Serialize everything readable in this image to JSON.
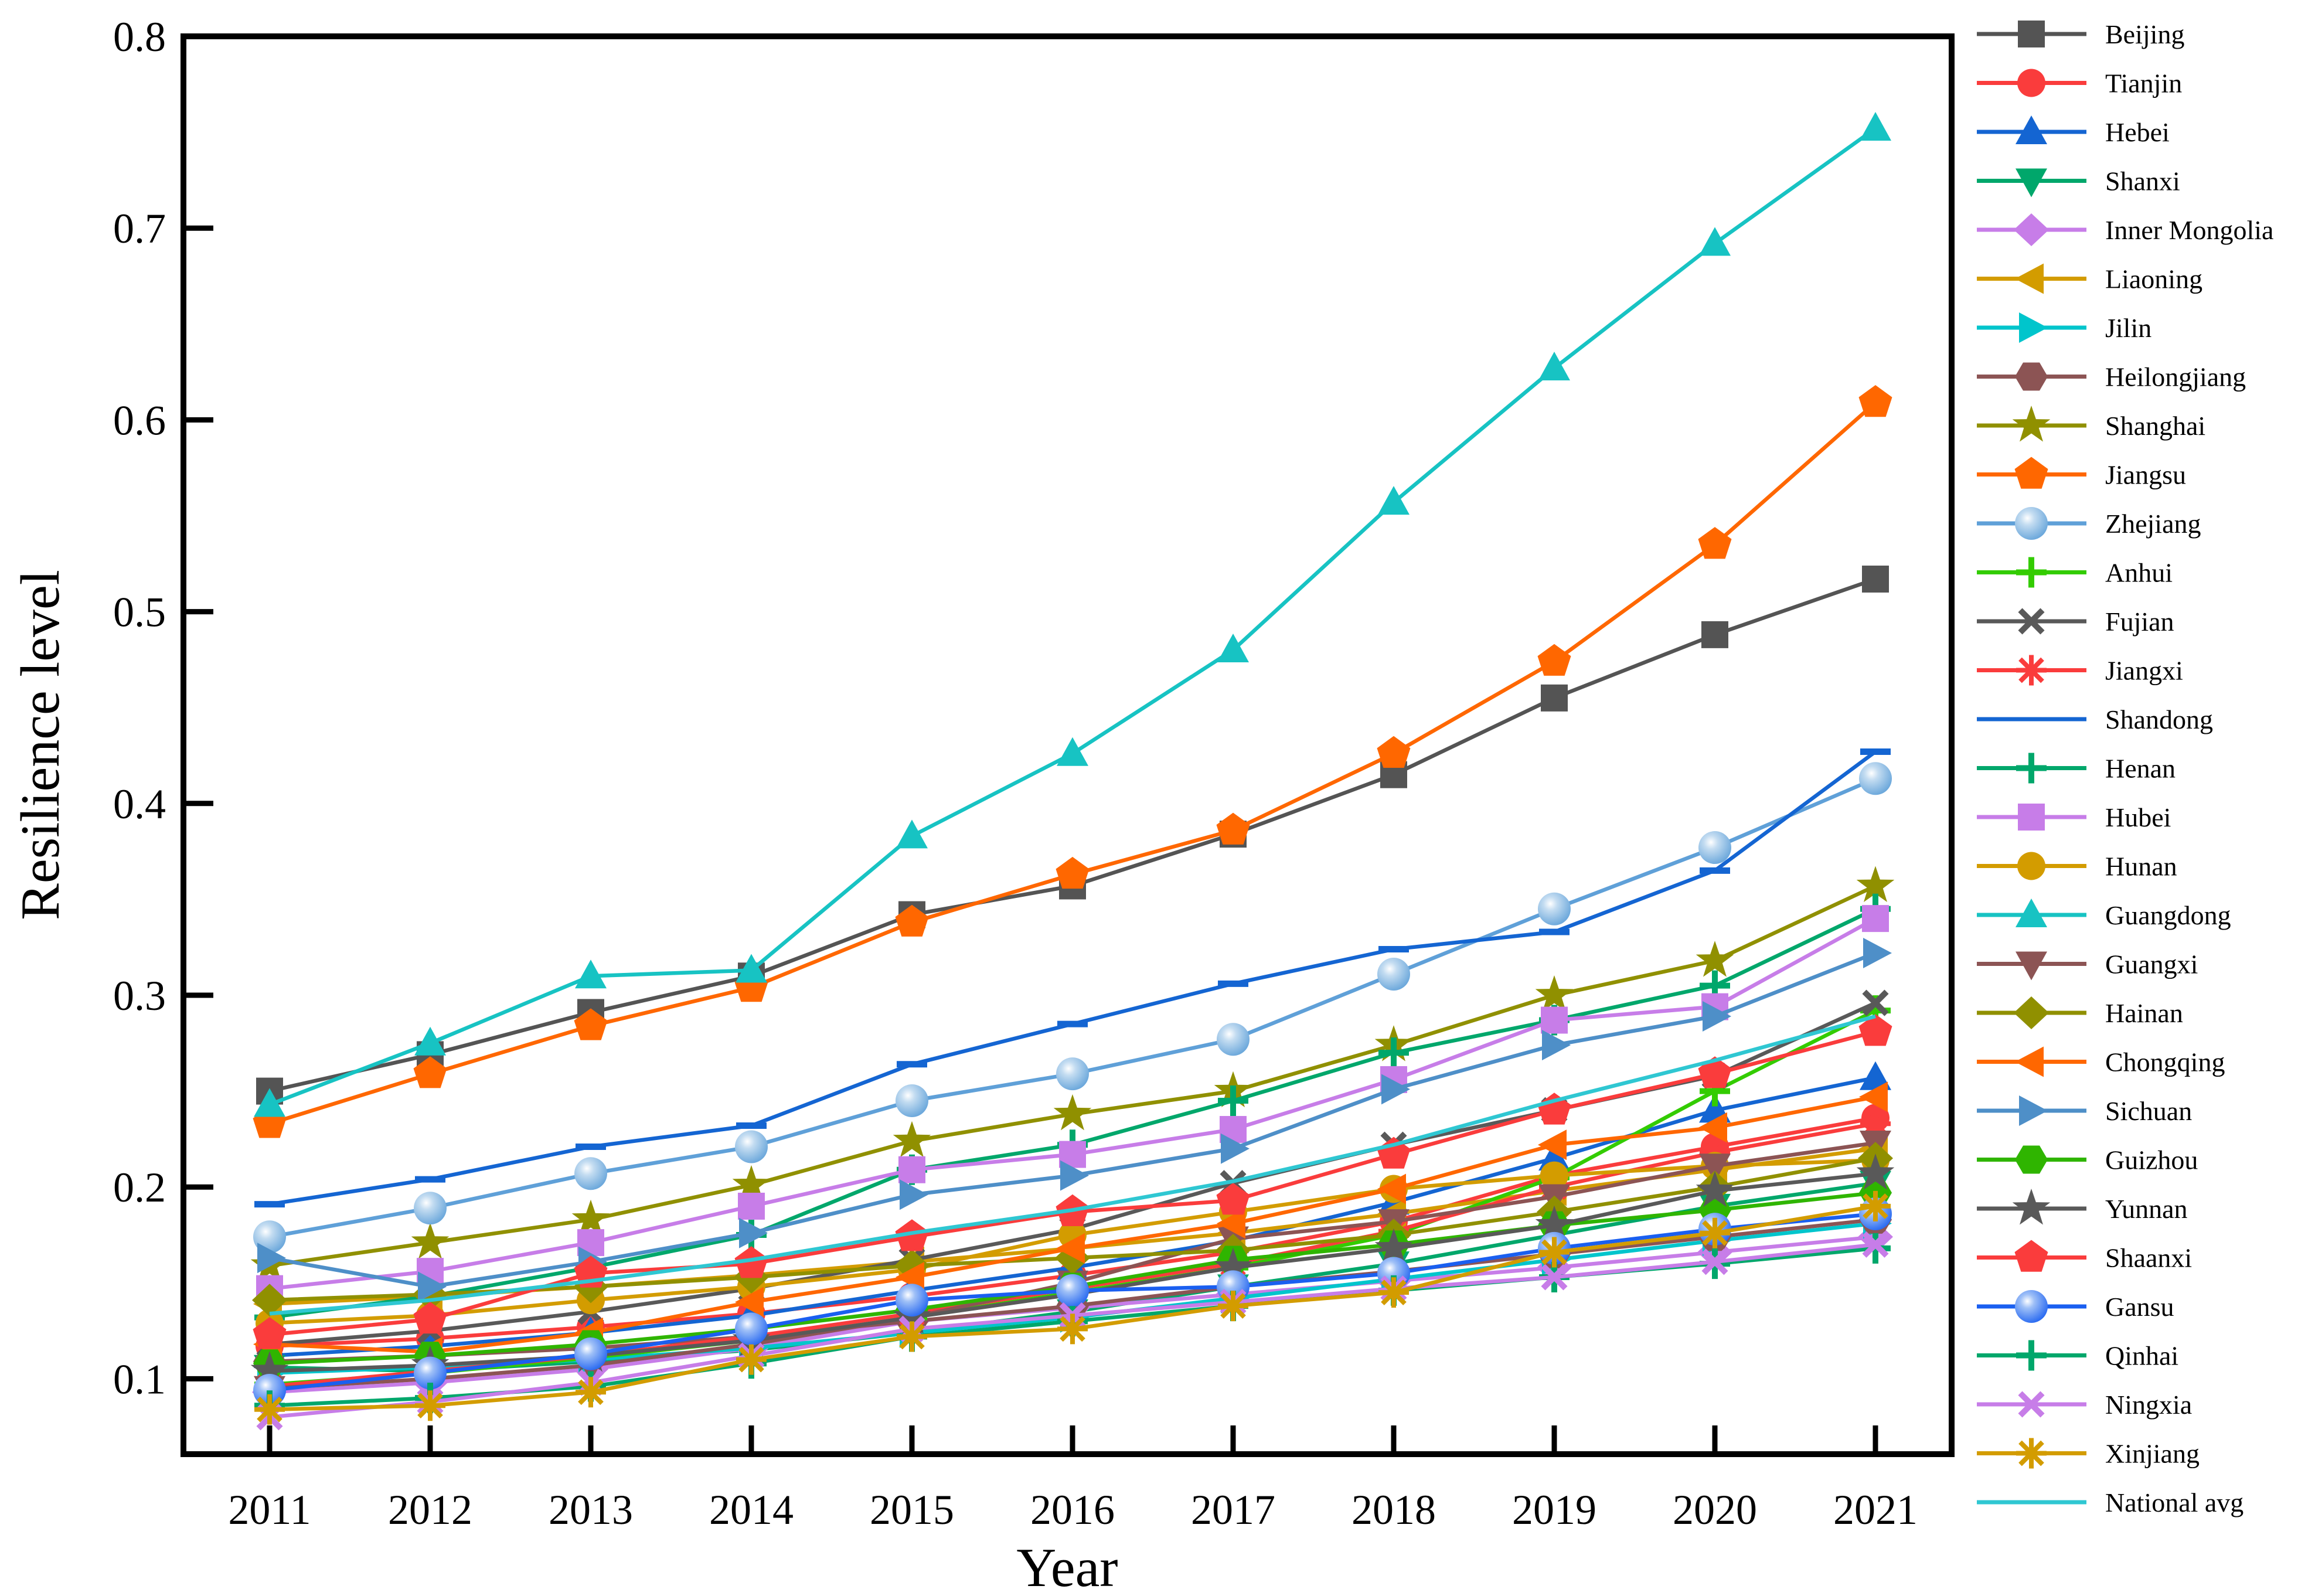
{
  "figure": {
    "background": "#FFFFFF"
  },
  "chart_data": {
    "type": "line",
    "title": "",
    "xlabel": "Year",
    "ylabel": "Resilience level",
    "x": [
      2011,
      2012,
      2013,
      2014,
      2015,
      2016,
      2017,
      2018,
      2019,
      2020,
      2021
    ],
    "x_tick_labels": [
      "2011",
      "2012",
      "2013",
      "2014",
      "2015",
      "2016",
      "2017",
      "2018",
      "2019",
      "2020",
      "2021"
    ],
    "y_ticks": [
      0.1,
      0.2,
      0.3,
      0.4,
      0.5,
      0.6,
      0.7,
      0.8
    ],
    "y_tick_labels": [
      "0.1",
      "0.2",
      "0.3",
      "0.4",
      "0.5",
      "0.6",
      "0.7",
      "0.8"
    ],
    "ylim": [
      0.06,
      0.8
    ],
    "grid": false,
    "legend_position": "right",
    "series": [
      {
        "name": "Beijing",
        "color": "#545454",
        "marker": "square",
        "values": [
          0.25,
          0.269,
          0.291,
          0.31,
          0.342,
          0.357,
          0.384,
          0.415,
          0.455,
          0.488,
          0.517
        ]
      },
      {
        "name": "Tianjin",
        "color": "#FA3C3C",
        "marker": "circle",
        "values": [
          0.117,
          0.121,
          0.127,
          0.134,
          0.143,
          0.154,
          0.166,
          0.182,
          0.206,
          0.221,
          0.236
        ]
      },
      {
        "name": "Hebei",
        "color": "#1465D2",
        "marker": "triangle-up",
        "values": [
          0.112,
          0.117,
          0.124,
          0.133,
          0.146,
          0.158,
          0.172,
          0.192,
          0.215,
          0.24,
          0.257
        ]
      },
      {
        "name": "Shanxi",
        "color": "#00A76B",
        "marker": "triangle-down",
        "values": [
          0.106,
          0.104,
          0.109,
          0.115,
          0.124,
          0.135,
          0.148,
          0.16,
          0.175,
          0.19,
          0.202
        ]
      },
      {
        "name": "Inner Mongolia",
        "color": "#C77DE8",
        "marker": "diamond",
        "values": [
          0.093,
          0.098,
          0.105,
          0.116,
          0.13,
          0.137,
          0.144,
          0.151,
          0.158,
          0.166,
          0.174
        ]
      },
      {
        "name": "Liaoning",
        "color": "#D39C00",
        "marker": "triangle-left",
        "values": [
          0.139,
          0.143,
          0.148,
          0.154,
          0.161,
          0.168,
          0.176,
          0.186,
          0.198,
          0.209,
          0.22
        ]
      },
      {
        "name": "Jilin",
        "color": "#00C5CC",
        "marker": "triangle-right",
        "values": [
          0.103,
          0.106,
          0.11,
          0.116,
          0.124,
          0.132,
          0.142,
          0.152,
          0.162,
          0.172,
          0.181
        ]
      },
      {
        "name": "Heilongjiang",
        "color": "#8C5454",
        "marker": "hexagon",
        "values": [
          0.109,
          0.112,
          0.116,
          0.122,
          0.13,
          0.138,
          0.148,
          0.156,
          0.165,
          0.174,
          0.183
        ]
      },
      {
        "name": "Shanghai",
        "color": "#909000",
        "marker": "star",
        "values": [
          0.159,
          0.171,
          0.183,
          0.201,
          0.224,
          0.238,
          0.25,
          0.274,
          0.3,
          0.318,
          0.357
        ]
      },
      {
        "name": "Jiangsu",
        "color": "#FF6700",
        "marker": "pentagon",
        "values": [
          0.233,
          0.259,
          0.284,
          0.304,
          0.338,
          0.363,
          0.386,
          0.426,
          0.474,
          0.535,
          0.609
        ]
      },
      {
        "name": "Zhejiang",
        "color": "#5FA0D8",
        "marker": "sphere",
        "values": [
          0.174,
          0.189,
          0.207,
          0.221,
          0.245,
          0.259,
          0.277,
          0.311,
          0.345,
          0.377,
          0.413
        ]
      },
      {
        "name": "Anhui",
        "color": "#33CC00",
        "marker": "plus",
        "values": [
          0.097,
          0.103,
          0.111,
          0.12,
          0.132,
          0.145,
          0.158,
          0.175,
          0.205,
          0.25,
          0.292
        ]
      },
      {
        "name": "Fujian",
        "color": "#595959",
        "marker": "x",
        "values": [
          0.118,
          0.125,
          0.135,
          0.147,
          0.162,
          0.178,
          0.202,
          0.222,
          0.24,
          0.258,
          0.296
        ]
      },
      {
        "name": "Jiangxi",
        "color": "#FA3C3C",
        "marker": "asterisk",
        "values": [
          0.096,
          0.104,
          0.112,
          0.122,
          0.134,
          0.147,
          0.16,
          0.177,
          0.2,
          0.218,
          0.233
        ]
      },
      {
        "name": "Shandong",
        "color": "#1465D2",
        "marker": "dash",
        "values": [
          0.191,
          0.204,
          0.221,
          0.232,
          0.264,
          0.285,
          0.306,
          0.324,
          0.333,
          0.365,
          0.427
        ]
      },
      {
        "name": "Henan",
        "color": "#00A76B",
        "marker": "plus",
        "values": [
          0.132,
          0.143,
          0.158,
          0.175,
          0.209,
          0.222,
          0.245,
          0.27,
          0.287,
          0.305,
          0.345
        ]
      },
      {
        "name": "Hubei",
        "color": "#C77DE8",
        "marker": "square",
        "values": [
          0.147,
          0.156,
          0.171,
          0.19,
          0.209,
          0.217,
          0.23,
          0.256,
          0.287,
          0.294,
          0.34
        ]
      },
      {
        "name": "Hunan",
        "color": "#D39C00",
        "marker": "circle",
        "values": [
          0.129,
          0.133,
          0.141,
          0.148,
          0.157,
          0.175,
          0.187,
          0.199,
          0.206,
          0.211,
          0.214
        ]
      },
      {
        "name": "Guangdong",
        "color": "#17C3C3",
        "marker": "triangle-up",
        "values": [
          0.243,
          0.275,
          0.31,
          0.313,
          0.383,
          0.426,
          0.48,
          0.557,
          0.627,
          0.692,
          0.752
        ]
      },
      {
        "name": "Guangxi",
        "color": "#8C5454",
        "marker": "triangle-down",
        "values": [
          0.095,
          0.1,
          0.107,
          0.118,
          0.132,
          0.15,
          0.173,
          0.182,
          0.195,
          0.211,
          0.223
        ]
      },
      {
        "name": "Hainan",
        "color": "#909000",
        "marker": "diamond",
        "values": [
          0.141,
          0.144,
          0.148,
          0.153,
          0.159,
          0.163,
          0.167,
          0.175,
          0.187,
          0.2,
          0.215
        ]
      },
      {
        "name": "Chongqing",
        "color": "#FF6700",
        "marker": "triangle-left",
        "values": [
          0.118,
          0.114,
          0.124,
          0.14,
          0.153,
          0.168,
          0.181,
          0.199,
          0.222,
          0.231,
          0.247
        ]
      },
      {
        "name": "Sichuan",
        "color": "#4E8FC8",
        "marker": "triangle-right",
        "values": [
          0.163,
          0.148,
          0.161,
          0.176,
          0.196,
          0.206,
          0.22,
          0.251,
          0.274,
          0.289,
          0.322
        ]
      },
      {
        "name": "Guizhou",
        "color": "#2FB500",
        "marker": "hexagon",
        "values": [
          0.108,
          0.112,
          0.118,
          0.126,
          0.136,
          0.148,
          0.162,
          0.17,
          0.18,
          0.188,
          0.197
        ]
      },
      {
        "name": "Yunnan",
        "color": "#595959",
        "marker": "star",
        "values": [
          0.104,
          0.107,
          0.112,
          0.12,
          0.132,
          0.144,
          0.158,
          0.168,
          0.18,
          0.198,
          0.207
        ]
      },
      {
        "name": "Shaanxi",
        "color": "#FA3C3C",
        "marker": "pentagon",
        "values": [
          0.123,
          0.131,
          0.155,
          0.16,
          0.174,
          0.187,
          0.193,
          0.217,
          0.24,
          0.259,
          0.281
        ]
      },
      {
        "name": "Gansu",
        "color": "#1A5FF0",
        "marker": "sphere",
        "values": [
          0.094,
          0.103,
          0.113,
          0.126,
          0.141,
          0.146,
          0.148,
          0.155,
          0.168,
          0.178,
          0.186
        ]
      },
      {
        "name": "Qinhai",
        "color": "#00A76B",
        "marker": "plus",
        "values": [
          0.086,
          0.09,
          0.096,
          0.108,
          0.122,
          0.13,
          0.138,
          0.146,
          0.153,
          0.16,
          0.168
        ]
      },
      {
        "name": "Ningxia",
        "color": "#C77DE8",
        "marker": "x",
        "values": [
          0.08,
          0.088,
          0.098,
          0.112,
          0.126,
          0.133,
          0.14,
          0.147,
          0.153,
          0.161,
          0.17
        ]
      },
      {
        "name": "Xinjiang",
        "color": "#D39C00",
        "marker": "asterisk",
        "values": [
          0.084,
          0.086,
          0.093,
          0.11,
          0.122,
          0.126,
          0.138,
          0.145,
          0.166,
          0.176,
          0.19
        ]
      },
      {
        "name": "National avg",
        "color": "#2FC7D2",
        "marker": "none",
        "values": [
          0.134,
          0.141,
          0.151,
          0.162,
          0.176,
          0.188,
          0.203,
          0.222,
          0.245,
          0.266,
          0.289
        ]
      }
    ]
  }
}
